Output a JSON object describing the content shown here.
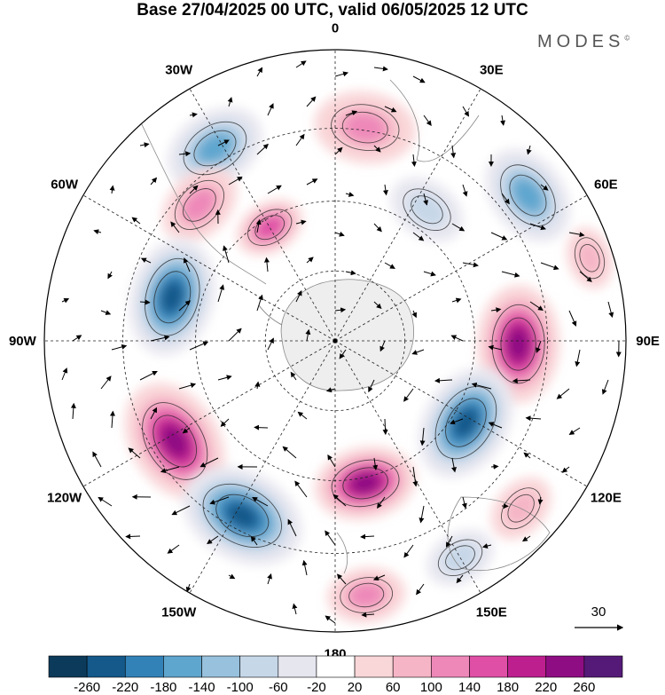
{
  "title": "Base 27/04/2025 00 UTC, valid 06/05/2025 12 UTC",
  "brand": "MODES",
  "brand_mark": "©",
  "longitude_labels": [
    {
      "id": "0",
      "label": "0",
      "angle": 0
    },
    {
      "id": "30e",
      "label": "30E",
      "angle": 30
    },
    {
      "id": "60e",
      "label": "60E",
      "angle": 60
    },
    {
      "id": "90e",
      "label": "90E",
      "angle": 90
    },
    {
      "id": "120e",
      "label": "120E",
      "angle": 120
    },
    {
      "id": "150e",
      "label": "150E",
      "angle": 150
    },
    {
      "id": "180",
      "label": "180",
      "angle": 180
    },
    {
      "id": "150w",
      "label": "150W",
      "angle": -150
    },
    {
      "id": "120w",
      "label": "120W",
      "angle": -120
    },
    {
      "id": "90w",
      "label": "90W",
      "angle": -90
    },
    {
      "id": "60w",
      "label": "60W",
      "angle": -60
    },
    {
      "id": "30w",
      "label": "30W",
      "angle": -30
    }
  ],
  "latitude_circles_fraction": [
    0.24,
    0.48,
    0.73
  ],
  "vector_reference": {
    "value": "30"
  },
  "colorbar": {
    "labels": [
      "-260",
      "-220",
      "-180",
      "-140",
      "-100",
      "-60",
      "-20",
      "20",
      "60",
      "100",
      "140",
      "180",
      "220",
      "260"
    ],
    "colors": [
      "#0c3a5a",
      "#14598a",
      "#3282b8",
      "#5fa6cf",
      "#98c1dd",
      "#c6d7e8",
      "#e6e6ef",
      "#ffffff",
      "#f9d6d8",
      "#f5b5c6",
      "#ee88b9",
      "#df4fa6",
      "#be1f8f",
      "#8f0d83",
      "#551a78"
    ]
  },
  "anomaly_centers": [
    {
      "name": "south-atlantic-low",
      "value": -170,
      "r": 0.78,
      "angle": -32,
      "size": 0.13
    },
    {
      "name": "greenwich-high",
      "value": 120,
      "r": 0.74,
      "angle": 8,
      "size": 0.13
    },
    {
      "name": "africa-low-1",
      "value": -110,
      "r": 0.55,
      "angle": 35,
      "size": 0.1
    },
    {
      "name": "africa-low-2",
      "value": -170,
      "r": 0.83,
      "angle": 53,
      "size": 0.13
    },
    {
      "name": "atlantic-high-1",
      "value": 150,
      "r": 0.66,
      "angle": -45,
      "size": 0.11
    },
    {
      "name": "atlantic-high-2",
      "value": 170,
      "r": 0.45,
      "angle": -30,
      "size": 0.09
    },
    {
      "name": "pacific-low-west",
      "value": -260,
      "r": 0.58,
      "angle": -75,
      "size": 0.15
    },
    {
      "name": "indian-high",
      "value": 270,
      "r": 0.63,
      "angle": 91,
      "size": 0.15
    },
    {
      "name": "australia-low",
      "value": -260,
      "r": 0.53,
      "angle": 122,
      "size": 0.15
    },
    {
      "name": "nz-high",
      "value": 260,
      "r": 0.5,
      "angle": 168,
      "size": 0.13
    },
    {
      "name": "southeast-pacific-high",
      "value": 270,
      "r": 0.65,
      "angle": -122,
      "size": 0.16
    },
    {
      "name": "south-pacific-low",
      "value": -260,
      "r": 0.68,
      "angle": -152,
      "size": 0.16
    },
    {
      "name": "tasman-high",
      "value": 120,
      "r": 0.88,
      "angle": 173,
      "size": 0.1
    },
    {
      "name": "east-australia-low",
      "value": -90,
      "r": 0.86,
      "angle": 150,
      "size": 0.09
    },
    {
      "name": "west-pacific-high",
      "value": 80,
      "r": 0.86,
      "angle": 132,
      "size": 0.09
    },
    {
      "name": "indian-ocean-high-2",
      "value": 80,
      "r": 0.92,
      "angle": 72,
      "size": 0.08
    }
  ]
}
